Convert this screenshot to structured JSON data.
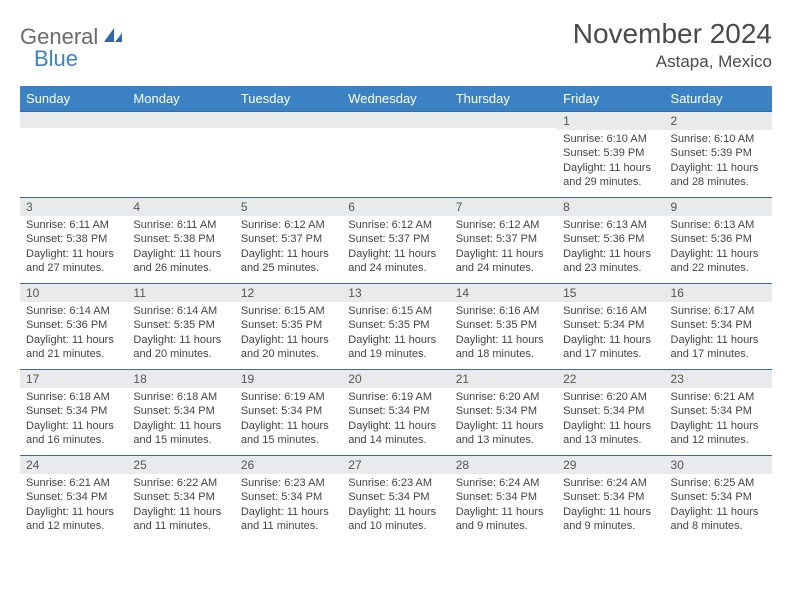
{
  "logo": {
    "general": "General",
    "blue": "Blue"
  },
  "title": "November 2024",
  "location": "Astapa, Mexico",
  "colors": {
    "header_bg": "#3b82c4",
    "header_text": "#ffffff",
    "daynum_bg": "#e9eaec",
    "border": "#3b6a9e",
    "text": "#444444",
    "title_text": "#4a4a4a",
    "logo_gray": "#6b6b6b",
    "logo_blue": "#3b82c4"
  },
  "days_of_week": [
    "Sunday",
    "Monday",
    "Tuesday",
    "Wednesday",
    "Thursday",
    "Friday",
    "Saturday"
  ],
  "weeks": [
    [
      {
        "n": "",
        "sunrise": "",
        "sunset": "",
        "daylight": ""
      },
      {
        "n": "",
        "sunrise": "",
        "sunset": "",
        "daylight": ""
      },
      {
        "n": "",
        "sunrise": "",
        "sunset": "",
        "daylight": ""
      },
      {
        "n": "",
        "sunrise": "",
        "sunset": "",
        "daylight": ""
      },
      {
        "n": "",
        "sunrise": "",
        "sunset": "",
        "daylight": ""
      },
      {
        "n": "1",
        "sunrise": "Sunrise: 6:10 AM",
        "sunset": "Sunset: 5:39 PM",
        "daylight": "Daylight: 11 hours and 29 minutes."
      },
      {
        "n": "2",
        "sunrise": "Sunrise: 6:10 AM",
        "sunset": "Sunset: 5:39 PM",
        "daylight": "Daylight: 11 hours and 28 minutes."
      }
    ],
    [
      {
        "n": "3",
        "sunrise": "Sunrise: 6:11 AM",
        "sunset": "Sunset: 5:38 PM",
        "daylight": "Daylight: 11 hours and 27 minutes."
      },
      {
        "n": "4",
        "sunrise": "Sunrise: 6:11 AM",
        "sunset": "Sunset: 5:38 PM",
        "daylight": "Daylight: 11 hours and 26 minutes."
      },
      {
        "n": "5",
        "sunrise": "Sunrise: 6:12 AM",
        "sunset": "Sunset: 5:37 PM",
        "daylight": "Daylight: 11 hours and 25 minutes."
      },
      {
        "n": "6",
        "sunrise": "Sunrise: 6:12 AM",
        "sunset": "Sunset: 5:37 PM",
        "daylight": "Daylight: 11 hours and 24 minutes."
      },
      {
        "n": "7",
        "sunrise": "Sunrise: 6:12 AM",
        "sunset": "Sunset: 5:37 PM",
        "daylight": "Daylight: 11 hours and 24 minutes."
      },
      {
        "n": "8",
        "sunrise": "Sunrise: 6:13 AM",
        "sunset": "Sunset: 5:36 PM",
        "daylight": "Daylight: 11 hours and 23 minutes."
      },
      {
        "n": "9",
        "sunrise": "Sunrise: 6:13 AM",
        "sunset": "Sunset: 5:36 PM",
        "daylight": "Daylight: 11 hours and 22 minutes."
      }
    ],
    [
      {
        "n": "10",
        "sunrise": "Sunrise: 6:14 AM",
        "sunset": "Sunset: 5:36 PM",
        "daylight": "Daylight: 11 hours and 21 minutes."
      },
      {
        "n": "11",
        "sunrise": "Sunrise: 6:14 AM",
        "sunset": "Sunset: 5:35 PM",
        "daylight": "Daylight: 11 hours and 20 minutes."
      },
      {
        "n": "12",
        "sunrise": "Sunrise: 6:15 AM",
        "sunset": "Sunset: 5:35 PM",
        "daylight": "Daylight: 11 hours and 20 minutes."
      },
      {
        "n": "13",
        "sunrise": "Sunrise: 6:15 AM",
        "sunset": "Sunset: 5:35 PM",
        "daylight": "Daylight: 11 hours and 19 minutes."
      },
      {
        "n": "14",
        "sunrise": "Sunrise: 6:16 AM",
        "sunset": "Sunset: 5:35 PM",
        "daylight": "Daylight: 11 hours and 18 minutes."
      },
      {
        "n": "15",
        "sunrise": "Sunrise: 6:16 AM",
        "sunset": "Sunset: 5:34 PM",
        "daylight": "Daylight: 11 hours and 17 minutes."
      },
      {
        "n": "16",
        "sunrise": "Sunrise: 6:17 AM",
        "sunset": "Sunset: 5:34 PM",
        "daylight": "Daylight: 11 hours and 17 minutes."
      }
    ],
    [
      {
        "n": "17",
        "sunrise": "Sunrise: 6:18 AM",
        "sunset": "Sunset: 5:34 PM",
        "daylight": "Daylight: 11 hours and 16 minutes."
      },
      {
        "n": "18",
        "sunrise": "Sunrise: 6:18 AM",
        "sunset": "Sunset: 5:34 PM",
        "daylight": "Daylight: 11 hours and 15 minutes."
      },
      {
        "n": "19",
        "sunrise": "Sunrise: 6:19 AM",
        "sunset": "Sunset: 5:34 PM",
        "daylight": "Daylight: 11 hours and 15 minutes."
      },
      {
        "n": "20",
        "sunrise": "Sunrise: 6:19 AM",
        "sunset": "Sunset: 5:34 PM",
        "daylight": "Daylight: 11 hours and 14 minutes."
      },
      {
        "n": "21",
        "sunrise": "Sunrise: 6:20 AM",
        "sunset": "Sunset: 5:34 PM",
        "daylight": "Daylight: 11 hours and 13 minutes."
      },
      {
        "n": "22",
        "sunrise": "Sunrise: 6:20 AM",
        "sunset": "Sunset: 5:34 PM",
        "daylight": "Daylight: 11 hours and 13 minutes."
      },
      {
        "n": "23",
        "sunrise": "Sunrise: 6:21 AM",
        "sunset": "Sunset: 5:34 PM",
        "daylight": "Daylight: 11 hours and 12 minutes."
      }
    ],
    [
      {
        "n": "24",
        "sunrise": "Sunrise: 6:21 AM",
        "sunset": "Sunset: 5:34 PM",
        "daylight": "Daylight: 11 hours and 12 minutes."
      },
      {
        "n": "25",
        "sunrise": "Sunrise: 6:22 AM",
        "sunset": "Sunset: 5:34 PM",
        "daylight": "Daylight: 11 hours and 11 minutes."
      },
      {
        "n": "26",
        "sunrise": "Sunrise: 6:23 AM",
        "sunset": "Sunset: 5:34 PM",
        "daylight": "Daylight: 11 hours and 11 minutes."
      },
      {
        "n": "27",
        "sunrise": "Sunrise: 6:23 AM",
        "sunset": "Sunset: 5:34 PM",
        "daylight": "Daylight: 11 hours and 10 minutes."
      },
      {
        "n": "28",
        "sunrise": "Sunrise: 6:24 AM",
        "sunset": "Sunset: 5:34 PM",
        "daylight": "Daylight: 11 hours and 9 minutes."
      },
      {
        "n": "29",
        "sunrise": "Sunrise: 6:24 AM",
        "sunset": "Sunset: 5:34 PM",
        "daylight": "Daylight: 11 hours and 9 minutes."
      },
      {
        "n": "30",
        "sunrise": "Sunrise: 6:25 AM",
        "sunset": "Sunset: 5:34 PM",
        "daylight": "Daylight: 11 hours and 8 minutes."
      }
    ]
  ]
}
